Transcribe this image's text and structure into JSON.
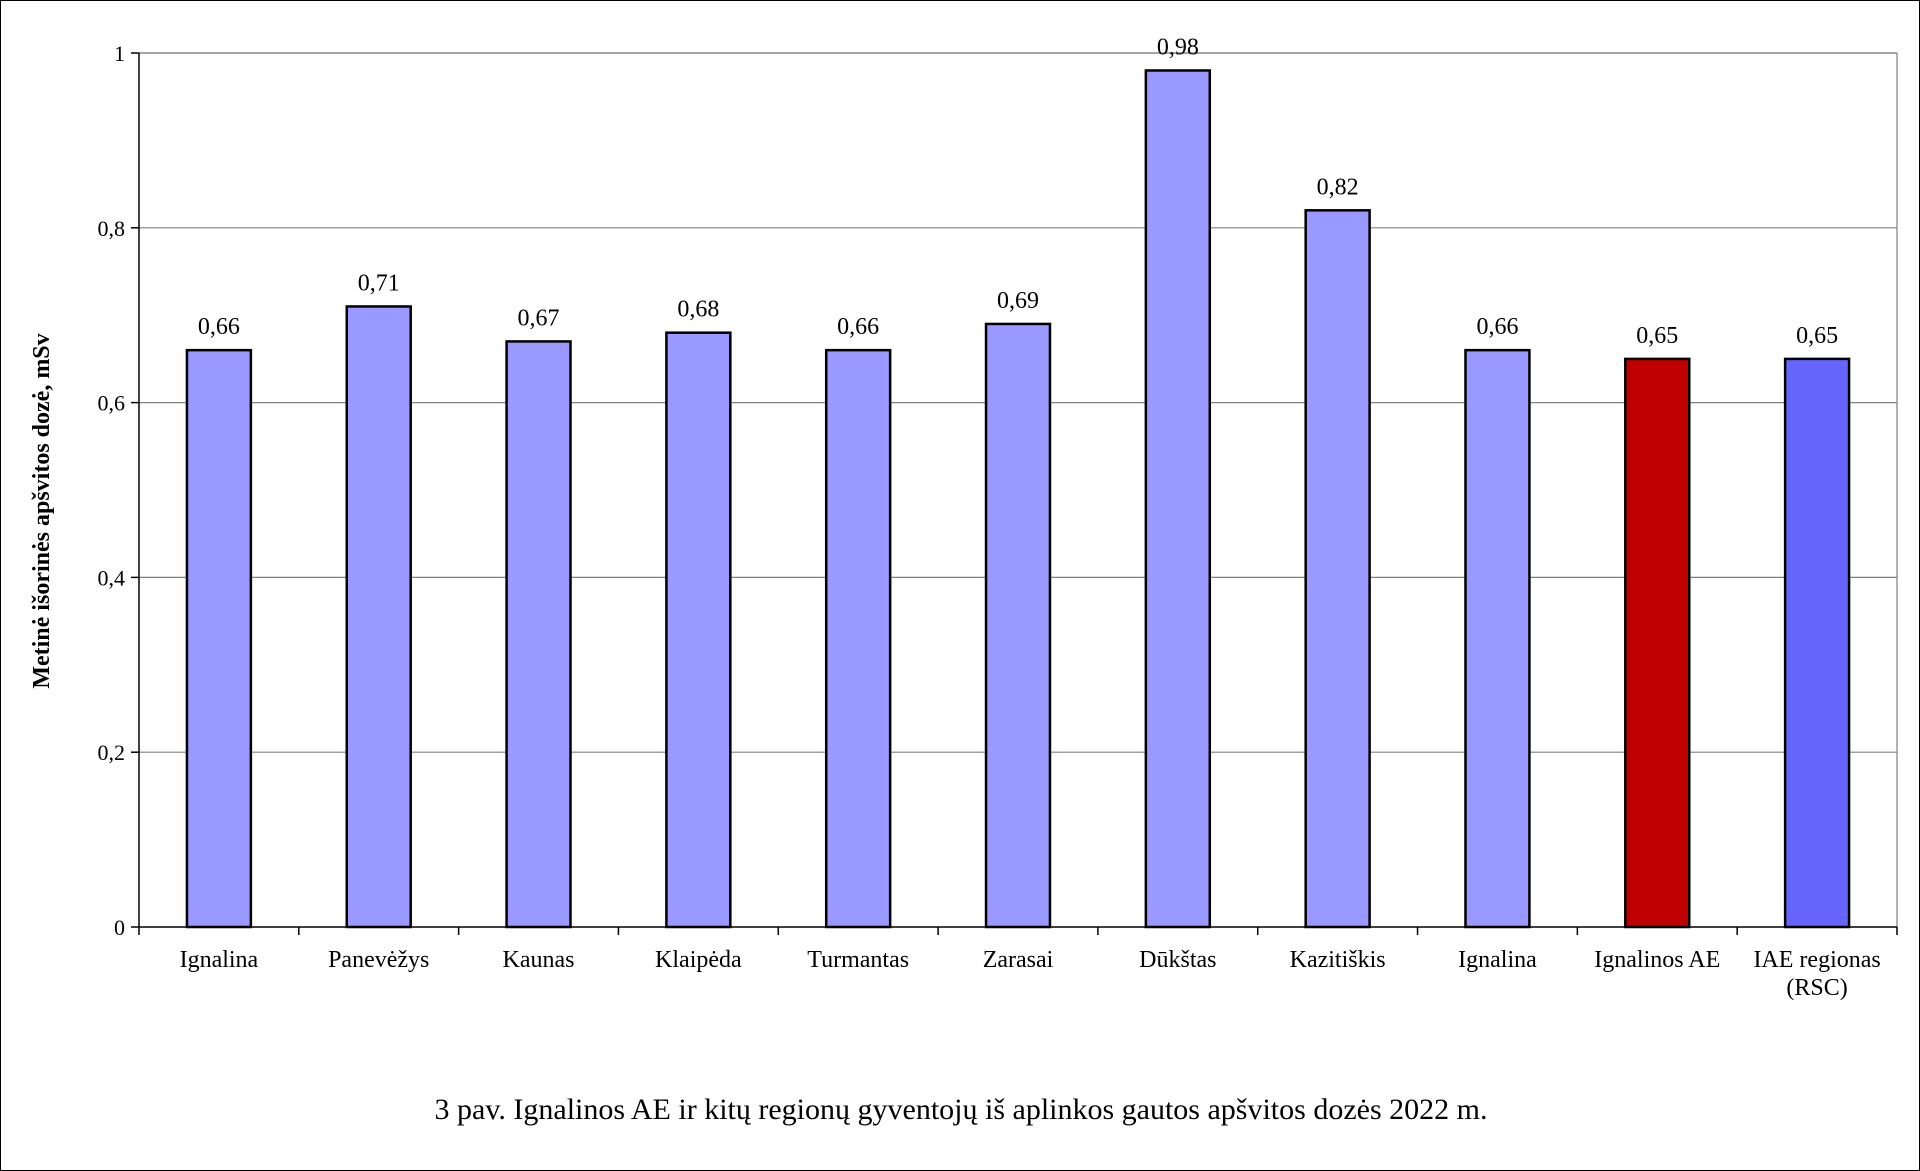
{
  "chart_data": {
    "type": "bar",
    "title": "",
    "xlabel": "",
    "ylabel": "Metinė išorinės apšvitos dozė, mSv",
    "ylim": [
      0,
      1
    ],
    "yticks": [
      "0",
      "0,2",
      "0,4",
      "0,6",
      "0,8",
      "1"
    ],
    "grid": true,
    "legend": "none",
    "categories": [
      [
        "Ignalina"
      ],
      [
        "Panevėžys"
      ],
      [
        "Kaunas"
      ],
      [
        "Klaipėda"
      ],
      [
        "Turmantas"
      ],
      [
        "Zarasai"
      ],
      [
        "Dūkštas"
      ],
      [
        "Kazitiškis"
      ],
      [
        "Ignalina"
      ],
      [
        "Ignalinos AE"
      ],
      [
        "IAE regionas",
        "(RSC)"
      ]
    ],
    "values": [
      0.66,
      0.71,
      0.67,
      0.68,
      0.66,
      0.69,
      0.98,
      0.82,
      0.66,
      0.65,
      0.65
    ],
    "data_labels": [
      "0,66",
      "0,71",
      "0,67",
      "0,68",
      "0,66",
      "0,69",
      "0,98",
      "0,82",
      "0,66",
      "0,65",
      "0,65"
    ],
    "bar_colors": [
      "#9999ff",
      "#9999ff",
      "#9999ff",
      "#9999ff",
      "#9999ff",
      "#9999ff",
      "#9999ff",
      "#9999ff",
      "#9999ff",
      "#c00000",
      "#6666ff"
    ],
    "gridline_color": "#808080"
  },
  "caption": "3 pav. Ignalinos AE ir kitų regionų gyventojų iš aplinkos gautos apšvitos dozės 2022 m."
}
